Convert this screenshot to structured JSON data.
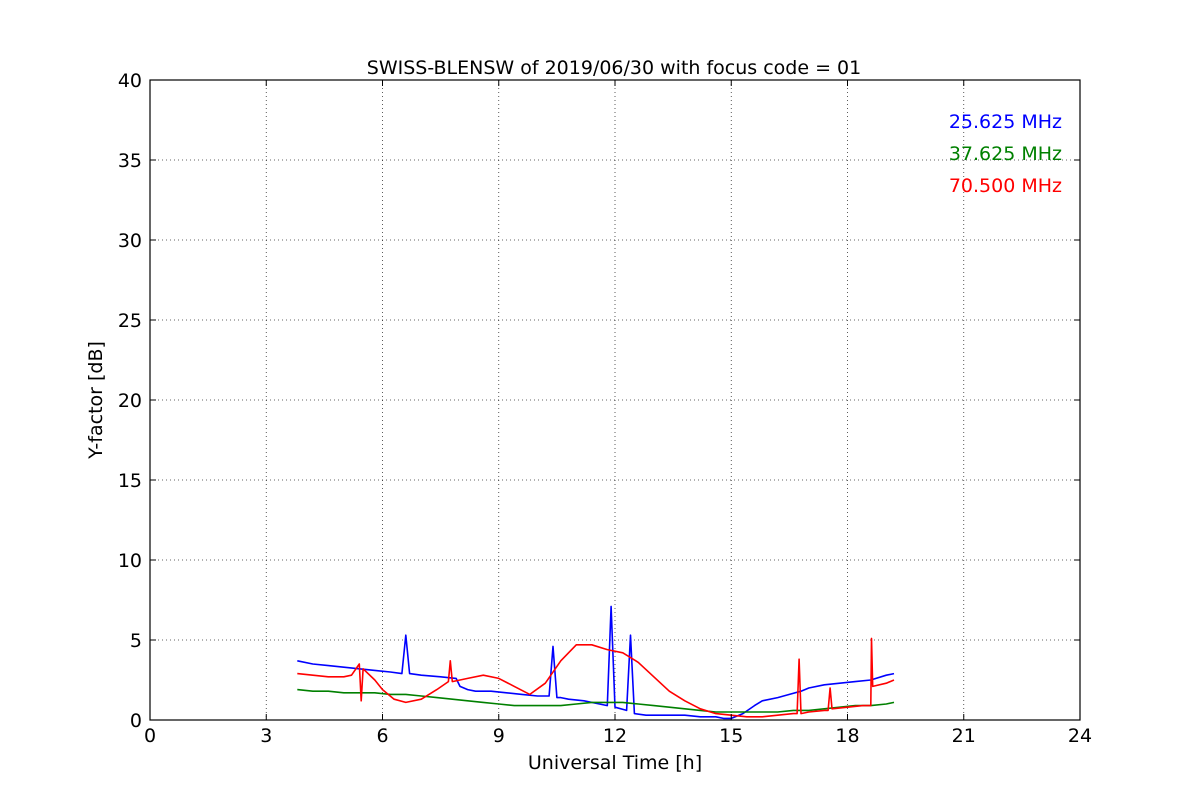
{
  "chart_data": {
    "type": "line",
    "title": "SWISS-BLENSW of 2019/06/30 with focus code = 01",
    "xlabel": "Universal Time [h]",
    "ylabel": "Y-factor [dB]",
    "xlim": [
      0,
      24
    ],
    "ylim": [
      0,
      40
    ],
    "xticks": [
      0,
      3,
      6,
      9,
      12,
      15,
      18,
      21,
      24
    ],
    "yticks": [
      0,
      5,
      10,
      15,
      20,
      25,
      30,
      35,
      40
    ],
    "xtick_labels": [
      "0",
      "3",
      "6",
      "9",
      "12",
      "15",
      "18",
      "21",
      "24"
    ],
    "ytick_labels": [
      "0",
      "5",
      "10",
      "15",
      "20",
      "25",
      "30",
      "35",
      "40"
    ],
    "grid": true,
    "legend_position": "top-right",
    "series": [
      {
        "name": "25.625 MHz",
        "color": "#0000ff",
        "x": [
          3.8,
          4.2,
          4.6,
          5.0,
          5.4,
          5.8,
          6.2,
          6.5,
          6.6,
          6.7,
          7.0,
          7.5,
          7.9,
          8.0,
          8.2,
          8.4,
          8.8,
          9.2,
          9.6,
          10.0,
          10.3,
          10.4,
          10.5,
          10.6,
          10.8,
          11.2,
          11.6,
          11.8,
          11.9,
          12.0,
          12.3,
          12.4,
          12.5,
          12.8,
          13.0,
          13.4,
          13.8,
          14.2,
          14.6,
          14.8,
          15.0,
          15.3,
          15.6,
          15.8,
          16.2,
          16.5,
          16.8,
          17.0,
          17.4,
          17.8,
          18.2,
          18.6,
          19.0,
          19.2
        ],
        "y": [
          3.7,
          3.5,
          3.4,
          3.3,
          3.2,
          3.1,
          3.0,
          2.9,
          5.3,
          2.9,
          2.8,
          2.7,
          2.6,
          2.1,
          1.9,
          1.8,
          1.8,
          1.7,
          1.6,
          1.5,
          1.5,
          4.6,
          1.4,
          1.4,
          1.3,
          1.2,
          1.0,
          0.9,
          7.1,
          0.8,
          0.6,
          5.3,
          0.4,
          0.3,
          0.3,
          0.3,
          0.3,
          0.2,
          0.2,
          0.1,
          0.1,
          0.4,
          0.9,
          1.2,
          1.4,
          1.6,
          1.8,
          2.0,
          2.2,
          2.3,
          2.4,
          2.5,
          2.8,
          2.9
        ]
      },
      {
        "name": "37.625 MHz",
        "color": "#008000",
        "x": [
          3.8,
          4.2,
          4.6,
          5.0,
          5.4,
          5.8,
          6.2,
          6.6,
          7.0,
          7.4,
          7.8,
          8.2,
          8.6,
          9.0,
          9.4,
          9.8,
          10.2,
          10.6,
          11.0,
          11.4,
          11.8,
          12.2,
          12.6,
          13.0,
          13.4,
          13.8,
          14.2,
          14.6,
          15.0,
          15.4,
          15.8,
          16.2,
          16.6,
          17.0,
          17.4,
          17.8,
          18.2,
          18.6,
          19.0,
          19.2
        ],
        "y": [
          1.9,
          1.8,
          1.8,
          1.7,
          1.7,
          1.7,
          1.6,
          1.6,
          1.5,
          1.4,
          1.3,
          1.2,
          1.1,
          1.0,
          0.9,
          0.9,
          0.9,
          0.9,
          1.0,
          1.1,
          1.1,
          1.1,
          1.0,
          0.9,
          0.8,
          0.7,
          0.6,
          0.5,
          0.5,
          0.5,
          0.5,
          0.5,
          0.6,
          0.6,
          0.7,
          0.8,
          0.9,
          0.9,
          1.0,
          1.1
        ]
      },
      {
        "name": "70.500 MHz",
        "color": "#ff0000",
        "x": [
          3.8,
          4.2,
          4.6,
          5.0,
          5.2,
          5.4,
          5.45,
          5.5,
          5.8,
          6.0,
          6.3,
          6.6,
          7.0,
          7.4,
          7.7,
          7.75,
          7.8,
          8.2,
          8.6,
          9.0,
          9.4,
          9.8,
          10.2,
          10.6,
          11.0,
          11.4,
          11.8,
          12.2,
          12.6,
          13.0,
          13.4,
          13.8,
          14.2,
          14.6,
          15.0,
          15.4,
          15.8,
          16.2,
          16.6,
          16.7,
          16.75,
          16.8,
          17.0,
          17.4,
          17.5,
          17.55,
          17.6,
          18.0,
          18.4,
          18.6,
          18.62,
          18.65,
          19.0,
          19.2
        ],
        "y": [
          2.9,
          2.8,
          2.7,
          2.7,
          2.8,
          3.5,
          1.2,
          3.2,
          2.5,
          1.9,
          1.3,
          1.1,
          1.3,
          1.9,
          2.4,
          3.7,
          2.4,
          2.6,
          2.8,
          2.6,
          2.1,
          1.6,
          2.3,
          3.7,
          4.7,
          4.7,
          4.4,
          4.2,
          3.6,
          2.7,
          1.8,
          1.2,
          0.7,
          0.4,
          0.3,
          0.2,
          0.2,
          0.3,
          0.4,
          0.4,
          3.8,
          0.4,
          0.5,
          0.6,
          0.6,
          2.0,
          0.7,
          0.8,
          0.9,
          0.9,
          5.1,
          2.1,
          2.3,
          2.5
        ]
      }
    ]
  }
}
